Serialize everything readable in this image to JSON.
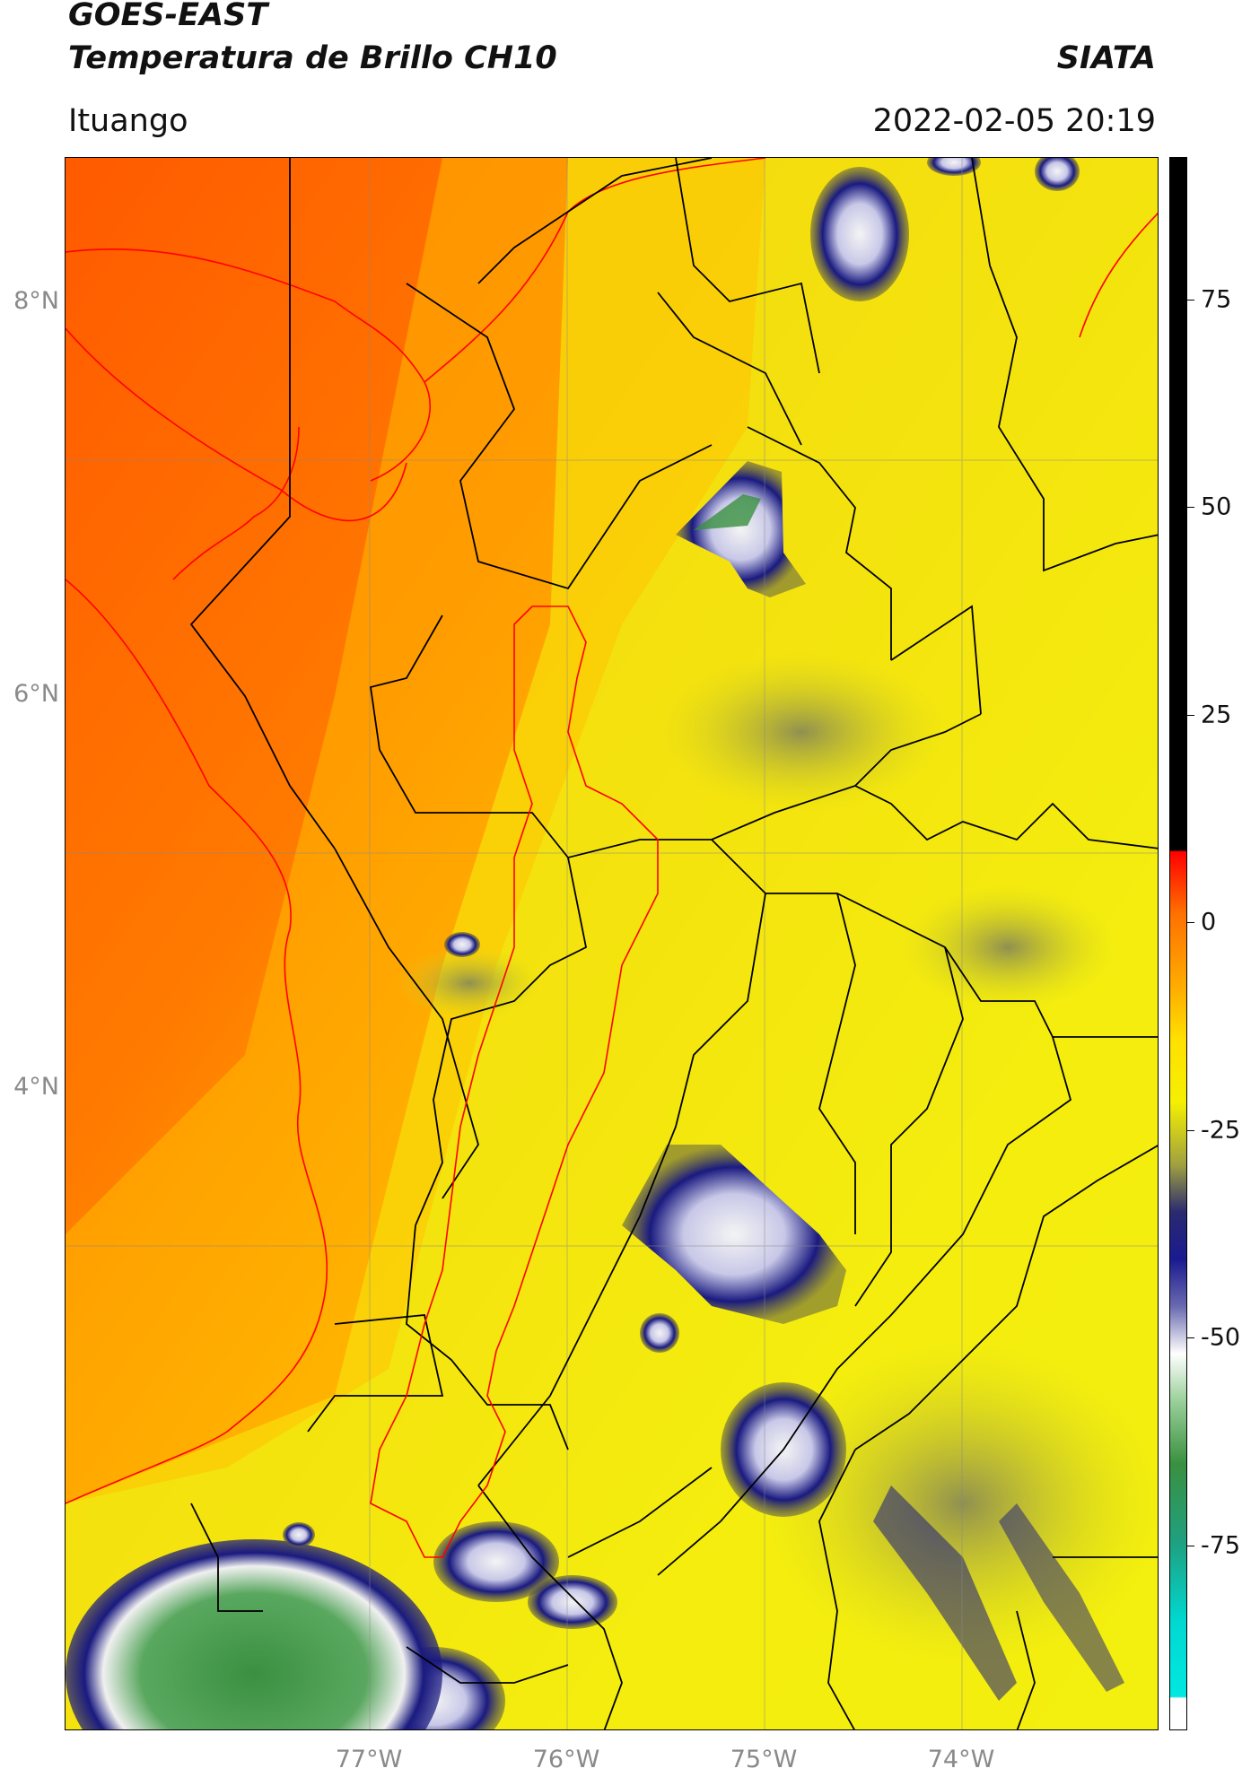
{
  "header": {
    "title_line1": "GOES-EAST",
    "title_line2": "Temperatura de Brillo CH10",
    "brand": "SIATA",
    "location": "Ituango",
    "timestamp": "2022-02-05 20:19"
  },
  "map": {
    "lat_labels": [
      "8°N",
      "6°N",
      "4°N"
    ],
    "lon_labels": [
      "77°W",
      "76°W",
      "75°W",
      "74°W"
    ],
    "palette": {
      "warm": "#ff6a00",
      "orange": "#ffa000",
      "yellow": "#f5f000",
      "olive": "#b0b040",
      "navy": "#1a1a80",
      "white": "#f2f2f2",
      "green": "#3a9040",
      "border_black": "#000000",
      "border_red": "#ff0000"
    }
  },
  "colorbar": {
    "tick_labels": [
      "75",
      "50",
      "25",
      "0",
      "-25",
      "-50",
      "-75"
    ],
    "range": [
      -95,
      90
    ]
  }
}
